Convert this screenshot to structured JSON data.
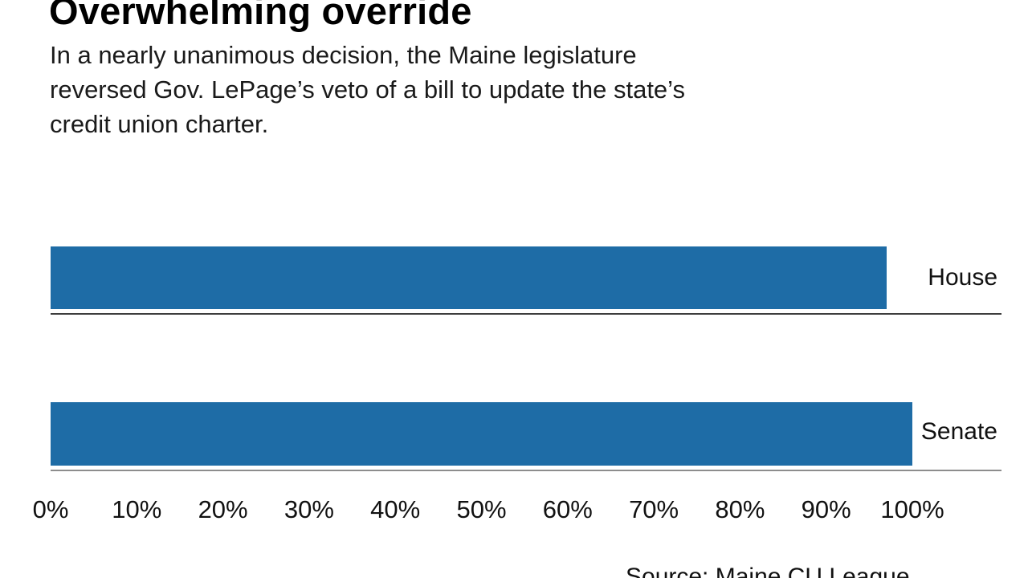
{
  "title": "Overwhelming override",
  "subtitle": {
    "lines": [
      "In a nearly unanimous decision, the Maine legislature",
      "reversed Gov. LePage’s veto of a bill to update the state’s",
      "credit union charter."
    ]
  },
  "source": "Source: Maine CU League",
  "colors": {
    "bar": "#1E6CA6",
    "text": "#111111",
    "house_axis_line": "#3d3d3d",
    "senate_axis_line": "#8d8d8d"
  },
  "chart_data": {
    "type": "bar",
    "orientation": "horizontal",
    "title": "Overwhelming override",
    "categories": [
      "House",
      "Senate"
    ],
    "values": [
      97,
      100
    ],
    "value_unit": "percent of votes to override veto",
    "xlabel": "",
    "ylabel": "",
    "xlim": [
      0,
      100
    ],
    "x_ticks": [
      "0%",
      "10%",
      "20%",
      "30%",
      "40%",
      "50%",
      "60%",
      "70%",
      "80%",
      "90%",
      "100%"
    ],
    "grid": false,
    "legend": false,
    "bar_color": "#1E6CA6",
    "source": "Source: Maine CU League"
  }
}
